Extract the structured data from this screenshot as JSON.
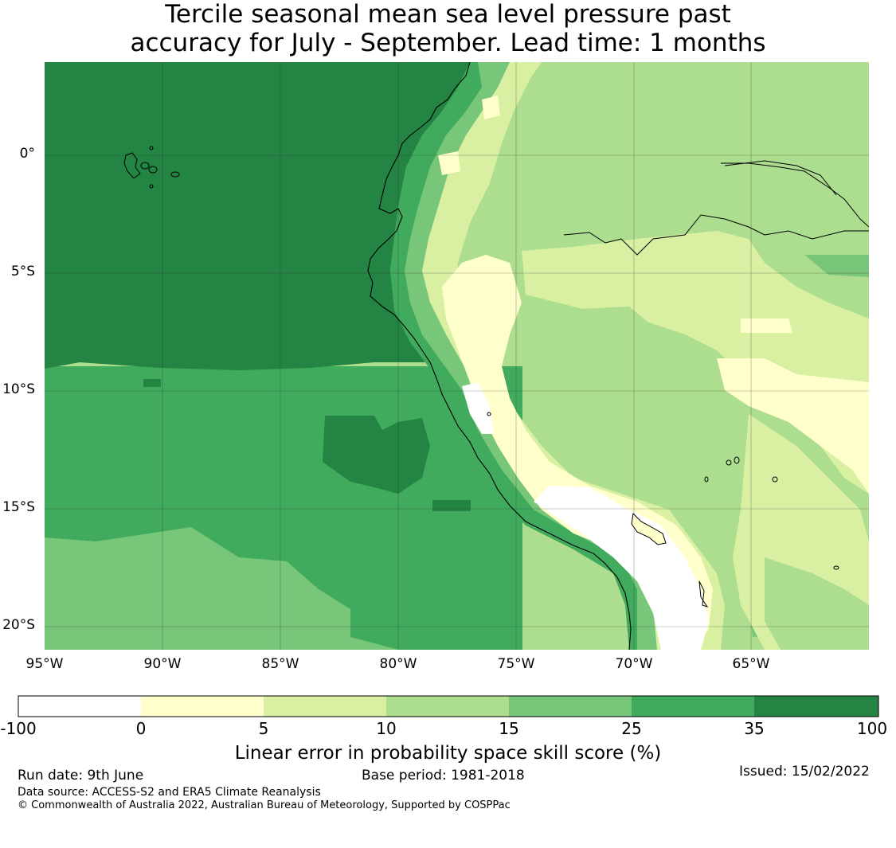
{
  "title_line1": "Tercile seasonal mean sea level pressure past",
  "title_line2": "accuracy for July - September. Lead time: 1 months",
  "lat_labels": [
    "0°",
    "5°S",
    "10°S",
    "15°S",
    "20°S"
  ],
  "lon_labels": [
    "95°W",
    "90°W",
    "85°W",
    "80°W",
    "75°W",
    "70°W",
    "65°W"
  ],
  "colorbar": {
    "ticks": [
      "-100",
      "0",
      "5",
      "10",
      "15",
      "25",
      "35",
      "100"
    ],
    "colors": [
      "#ffffff",
      "#ffffcc",
      "#d9f0a3",
      "#addd8e",
      "#78c679",
      "#41ab5d",
      "#238443"
    ],
    "label": "Linear error in probability space skill score (%)"
  },
  "footer": {
    "run_date": "Run date: 9th June",
    "base_period": "Base period: 1981-2018",
    "issued": "Issued: 15/02/2022",
    "data_source": "Data source: ACCESS-S2 and ERA5 Climate Reanalysis",
    "copyright": "© Commonwealth of Australia 2022, Australian Bureau of Meteorology, Supported by COSPPac"
  }
}
